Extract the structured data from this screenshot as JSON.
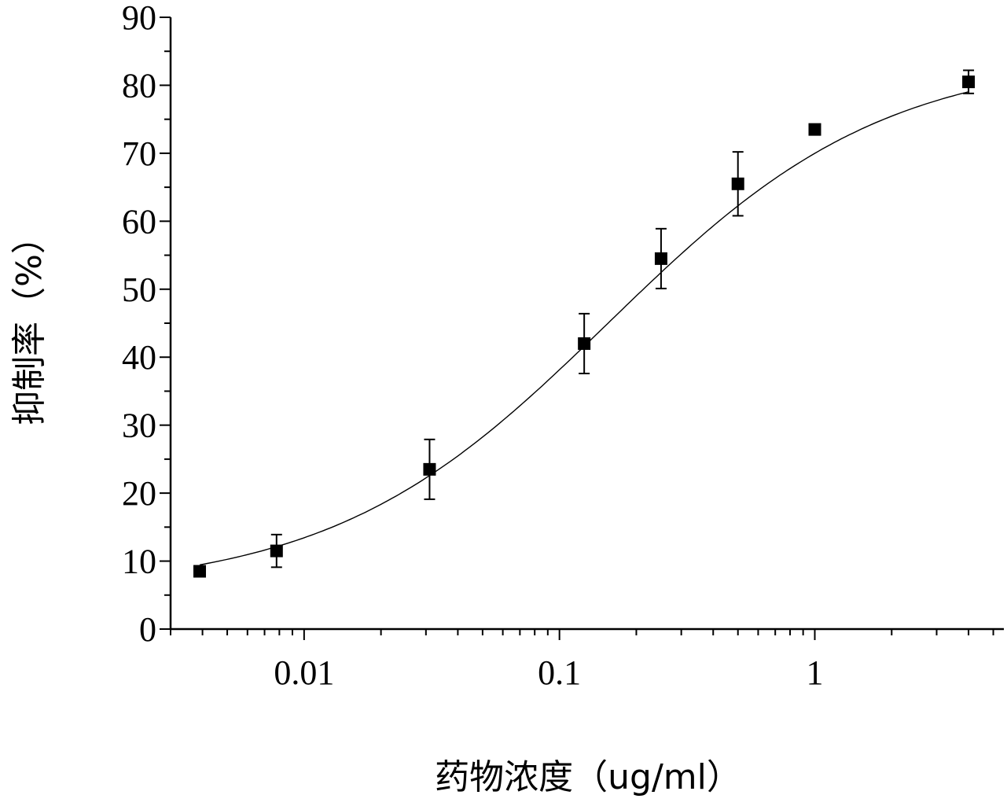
{
  "chart_data": {
    "type": "scatter",
    "xlabel": "药物浓度（ug/ml）",
    "ylabel": "抑制率（%）",
    "x_scale": "log",
    "xlim": [
      0.003,
      5.5
    ],
    "ylim": [
      0,
      90
    ],
    "x_ticks": [
      0.01,
      0.1,
      1
    ],
    "x_tick_labels": [
      "0.01",
      "0.1",
      "1"
    ],
    "y_ticks": [
      0,
      10,
      20,
      30,
      40,
      50,
      60,
      70,
      80,
      90
    ],
    "y_tick_labels": [
      "0",
      "10",
      "20",
      "30",
      "40",
      "50",
      "60",
      "70",
      "80",
      "90"
    ],
    "grid": false,
    "legend": "none",
    "points": [
      {
        "x": 0.0039,
        "y": 8.5,
        "err": 0
      },
      {
        "x": 0.0078,
        "y": 11.5,
        "err": 2.4
      },
      {
        "x": 0.031,
        "y": 23.5,
        "err": 4.4
      },
      {
        "x": 0.125,
        "y": 42,
        "err": 4.4
      },
      {
        "x": 0.25,
        "y": 54.5,
        "err": 4.4
      },
      {
        "x": 0.5,
        "y": 65.5,
        "err": 4.7
      },
      {
        "x": 1.0,
        "y": 73.5,
        "err": 0
      },
      {
        "x": 4.0,
        "y": 80.5,
        "err": 1.7
      }
    ],
    "fit_curve": {
      "model": "4PL",
      "bottom": 5.5,
      "top": 84.5,
      "ec50": 0.155,
      "hill": 0.8
    }
  }
}
